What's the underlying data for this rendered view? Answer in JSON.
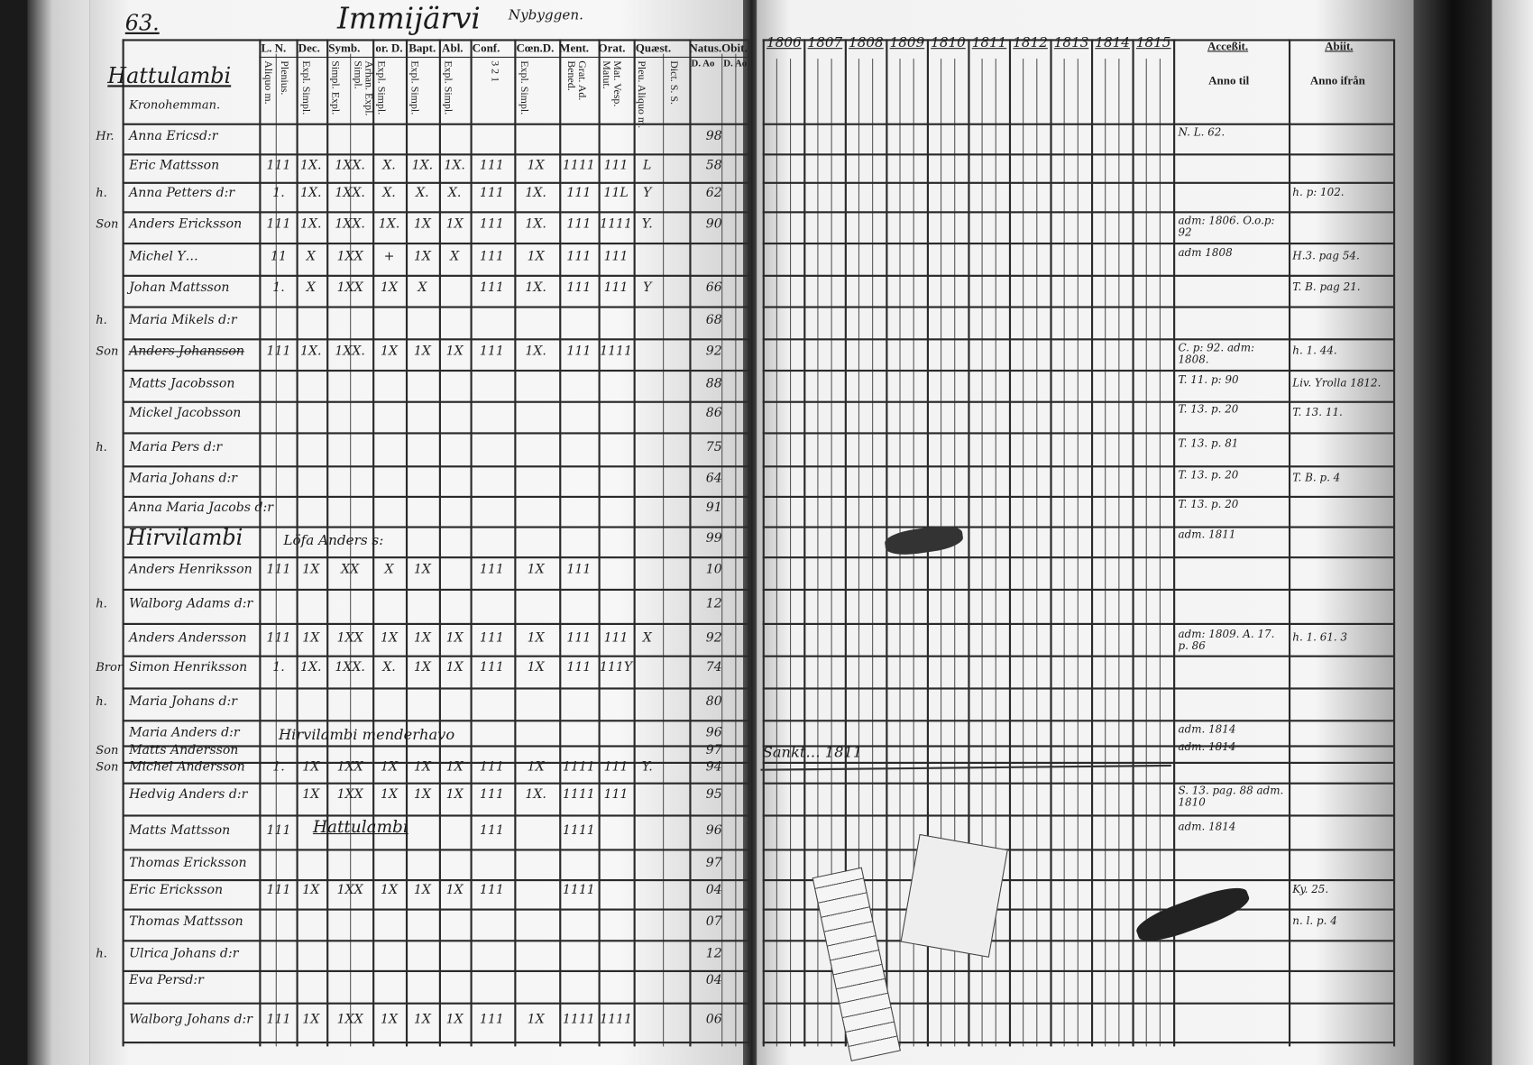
{
  "header": {
    "page_number": "63.",
    "village": "Immijärvi",
    "subtitle": "Nybyggen.",
    "left_columns": [
      "L. N.",
      "Dec.",
      "Symb.",
      "or. D.",
      "Bapt.",
      "Abl.",
      "Conf.",
      "Cœn.D.",
      "Ment.",
      "Orat.",
      "Quæst.",
      "Natus.",
      "Obit."
    ],
    "left_subcolumns": [
      "Aliquo m.",
      "Plenius.",
      "Expl. Simpl.",
      "Simpl. Expl.",
      "Arhan. Expl. Simpl.",
      "Expl. Simpl.",
      "Expl. Simpl.",
      "Expl. Simpl.",
      "3 2 1",
      "Expl. Simpl.",
      "Grat. Ad. Bened.",
      "Mat. Vesp. Matut.",
      "Pleu. Aliquo m.",
      "Dict. S. S.",
      "D. Ao",
      "D. Ao"
    ],
    "years": [
      "1806",
      "1807",
      "1808",
      "1809",
      "1810",
      "1811",
      "1812",
      "1813",
      "1814",
      "1815"
    ],
    "accessit": {
      "title": "Acceßit.",
      "sub": "Anno til"
    },
    "abiit": {
      "title": "Abiit.",
      "sub": "Anno ifrån"
    }
  },
  "sections": [
    {
      "title": "Hattulambi",
      "note": "Kronohemman."
    },
    {
      "title": "Hirvilambi",
      "note": "Löfa Anders s:"
    }
  ],
  "rows": [
    {
      "role": "Hr.",
      "name": "Anna Ericsd:r",
      "marks": [],
      "natus": "98",
      "accessit": "N. L. 62.",
      "abiit": ""
    },
    {
      "role": "",
      "name": "Eric Mattsson",
      "marks": [
        "111",
        "1X.",
        "1XX.",
        "X.",
        "1X.",
        "1X.",
        "111",
        "1X",
        "1111",
        "111",
        "L"
      ],
      "natus": "58",
      "accessit": "",
      "abiit": ""
    },
    {
      "role": "h.",
      "name": "Anna Petters d:r",
      "marks": [
        "1.",
        "1X.",
        "1XX.",
        "X.",
        "X.",
        "X.",
        "111",
        "1X.",
        "111",
        "11L",
        "Y"
      ],
      "natus": "62",
      "accessit": "",
      "abiit": "h. p: 102."
    },
    {
      "role": "Son",
      "name": "Anders Ericksson",
      "marks": [
        "111",
        "1X.",
        "1XX.",
        "1X.",
        "1X",
        "1X",
        "111",
        "1X.",
        "111",
        "1111",
        "Y."
      ],
      "natus": "90",
      "accessit": "adm: 1806. O.o.p: 92",
      "abiit": ""
    },
    {
      "role": "",
      "name": "Michel Y…",
      "marks": [
        "11",
        "X",
        "1XX",
        "+",
        "1X",
        "X",
        "111",
        "1X",
        "111",
        "111",
        ""
      ],
      "natus": "",
      "accessit": "adm 1808",
      "abiit": "H.3. pag 54."
    },
    {
      "role": "",
      "name": "Johan Mattsson",
      "marks": [
        "1.",
        "X",
        "1XX",
        "1X",
        "X",
        "",
        "111",
        "1X.",
        "111",
        "111",
        "Y"
      ],
      "natus": "66",
      "accessit": "",
      "abiit": "T. B. pag 21."
    },
    {
      "role": "h.",
      "name": "Maria Mikels d:r",
      "marks": [],
      "natus": "68",
      "accessit": "",
      "abiit": ""
    },
    {
      "role": "Son",
      "name": "Anders Johansson",
      "marks": [
        "111",
        "1X.",
        "1XX.",
        "1X",
        "1X",
        "1X",
        "111",
        "1X.",
        "111",
        "1111",
        ""
      ],
      "natus": "92",
      "accessit": "C. p: 92. adm: 1808.",
      "abiit": "h. 1. 44."
    },
    {
      "role": "",
      "name": "Matts Jacobsson",
      "marks": [],
      "natus": "88",
      "accessit": "T. 11. p: 90",
      "abiit": "Liv. Yrolla 1812."
    },
    {
      "role": "",
      "name": "Mickel Jacobsson",
      "marks": [],
      "natus": "86",
      "accessit": "T. 13. p. 20",
      "abiit": "T. 13. 11."
    },
    {
      "role": "h.",
      "name": "Maria Pers d:r",
      "marks": [],
      "natus": "75",
      "accessit": "T. 13. p. 81",
      "abiit": ""
    },
    {
      "role": "",
      "name": "Maria Johans d:r",
      "marks": [],
      "natus": "64",
      "accessit": "T. 13. p. 20",
      "abiit": "T. B. p. 4"
    },
    {
      "role": "",
      "name": "Anna Maria Jacobs d:r",
      "marks": [],
      "natus": "91",
      "accessit": "T. 13. p. 20",
      "abiit": ""
    },
    {
      "role": "",
      "name": "",
      "marks": [],
      "natus": "99",
      "accessit": "adm. 1811",
      "abiit": ""
    },
    {
      "role": "",
      "name": "Anders Henriksson",
      "marks": [
        "111",
        "1X",
        "XX",
        "X",
        "1X",
        "",
        "111",
        "1X",
        "111",
        "",
        ""
      ],
      "natus": "10",
      "accessit": "",
      "abiit": ""
    },
    {
      "role": "h.",
      "name": "Walborg Adams d:r",
      "marks": [],
      "natus": "12",
      "accessit": "",
      "abiit": ""
    },
    {
      "role": "",
      "name": "Anders Andersson",
      "marks": [
        "111",
        "1X",
        "1XX",
        "1X",
        "1X",
        "1X",
        "111",
        "1X",
        "111",
        "111",
        "X"
      ],
      "natus": "92",
      "accessit": "adm: 1809. A. 17. p. 86",
      "abiit": "h. 1. 61. 3"
    },
    {
      "role": "Bror",
      "name": "Simon Henriksson",
      "marks": [
        "1.",
        "1X.",
        "1XX.",
        "X.",
        "1X",
        "1X",
        "111",
        "1X",
        "111",
        "111Y",
        ""
      ],
      "natus": "74",
      "accessit": "",
      "abiit": ""
    },
    {
      "role": "h.",
      "name": "Maria Johans d:r",
      "marks": [],
      "natus": "80",
      "accessit": "",
      "abiit": ""
    },
    {
      "role": "",
      "name": "Maria Anders d:r",
      "marks": [],
      "natus": "96",
      "accessit": "adm. 1814",
      "abiit": ""
    },
    {
      "role": "Son",
      "name": "Matts Andersson",
      "marks": [],
      "natus": "97",
      "accessit": "adm. 1814",
      "abiit": ""
    },
    {
      "role": "Son",
      "name": "Michel Andersson",
      "marks": [
        "1.",
        "1X",
        "1XX",
        "1X",
        "1X",
        "1X",
        "111",
        "1X",
        "1111",
        "111",
        "Y."
      ],
      "natus": "94",
      "accessit": "",
      "abiit": ""
    },
    {
      "role": "",
      "name": "Hedvig Anders d:r",
      "marks": [
        "",
        "1X",
        "1XX",
        "1X",
        "1X",
        "1X",
        "111",
        "1X.",
        "1111",
        "111",
        ""
      ],
      "natus": "95",
      "accessit": "S. 13. pag. 88 adm. 1810",
      "abiit": ""
    },
    {
      "role": "",
      "name": "Matts Mattsson",
      "marks": [
        "111",
        "",
        "",
        "",
        "",
        "",
        "111",
        "",
        "1111",
        "",
        ""
      ],
      "natus": "96",
      "accessit": "adm. 1814",
      "abiit": ""
    },
    {
      "role": "",
      "name": "Thomas Ericksson",
      "marks": [],
      "natus": "97",
      "accessit": "",
      "abiit": ""
    },
    {
      "role": "",
      "name": "Eric Ericksson",
      "marks": [
        "111",
        "1X",
        "1XX",
        "1X",
        "1X",
        "1X",
        "111",
        "",
        "1111",
        "",
        ""
      ],
      "natus": "04",
      "accessit": "",
      "abiit": "Ky. 25."
    },
    {
      "role": "",
      "name": "Thomas Mattsson",
      "marks": [],
      "natus": "07",
      "accessit": "",
      "abiit": "n. l. p. 4"
    },
    {
      "role": "h.",
      "name": "Ulrica Johans d:r",
      "marks": [],
      "natus": "12",
      "accessit": "",
      "abiit": ""
    },
    {
      "role": "",
      "name": "Eva Persd:r",
      "marks": [],
      "natus": "04",
      "accessit": "",
      "abiit": ""
    },
    {
      "role": "",
      "name": "Walborg Johans d:r",
      "marks": [
        "111",
        "1X",
        "1XX",
        "1X",
        "1X",
        "1X",
        "111",
        "1X",
        "1111",
        "1111",
        ""
      ],
      "natus": "06",
      "accessit": "",
      "abiit": ""
    }
  ],
  "annotations": {
    "row20_left": "Hirvilambi menderhavo",
    "row24_left": "Hattulambi",
    "right_strike": "Sankt… 1811"
  }
}
